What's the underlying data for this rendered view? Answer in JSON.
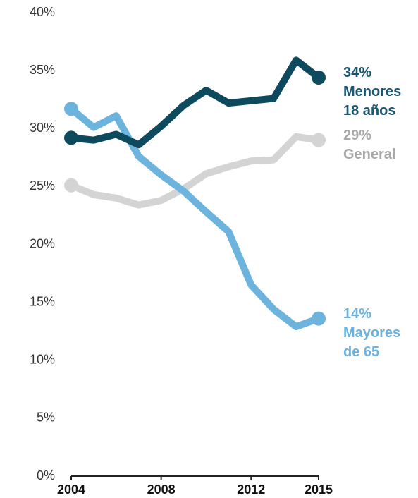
{
  "chart_data": {
    "type": "line",
    "x": [
      2004,
      2005,
      2006,
      2007,
      2008,
      2009,
      2010,
      2011,
      2012,
      2013,
      2014,
      2015
    ],
    "xlim": [
      2004,
      2015
    ],
    "xticks": [
      2004,
      2008,
      2012,
      2015
    ],
    "ylim": [
      0,
      40
    ],
    "yticks": [
      {
        "value": 0,
        "label": "0%"
      },
      {
        "value": 5,
        "label": "5%"
      },
      {
        "value": 10,
        "label": "10%"
      },
      {
        "value": 15,
        "label": "15%"
      },
      {
        "value": 20,
        "label": "20%"
      },
      {
        "value": 25,
        "label": "25%"
      },
      {
        "value": 30,
        "label": "30%"
      },
      {
        "value": 35,
        "label": "35%"
      },
      {
        "value": 40,
        "label": "40%"
      }
    ],
    "grid": false,
    "series": [
      {
        "name": "General",
        "color": "#d4d4d4",
        "label_color": "#a9a9a9",
        "values": [
          25.1,
          24.3,
          24.0,
          23.4,
          23.8,
          24.8,
          26.1,
          26.7,
          27.2,
          27.3,
          29.3,
          29.0
        ],
        "value_labels": [
          null,
          null,
          null,
          null,
          null,
          null,
          null,
          null,
          null,
          null,
          null,
          "29%"
        ]
      },
      {
        "name": "Mayores de 65",
        "color": "#6cb4de",
        "label_color": "#6ab3e0",
        "values": [
          31.7,
          30.1,
          31.1,
          27.6,
          26.0,
          24.6,
          22.8,
          21.1,
          16.5,
          14.4,
          12.9,
          13.6
        ],
        "value_labels": [
          null,
          null,
          null,
          null,
          null,
          null,
          null,
          null,
          null,
          null,
          null,
          "14%"
        ]
      },
      {
        "name": "Menores 18 años",
        "color": "#0d4a5e",
        "label_color": "#1a5670",
        "values": [
          29.2,
          29.0,
          29.5,
          28.6,
          30.2,
          32.0,
          33.3,
          32.2,
          32.4,
          32.6,
          35.9,
          34.4
        ],
        "value_labels": [
          null,
          null,
          null,
          null,
          null,
          null,
          null,
          null,
          null,
          null,
          null,
          "34%"
        ]
      }
    ]
  }
}
